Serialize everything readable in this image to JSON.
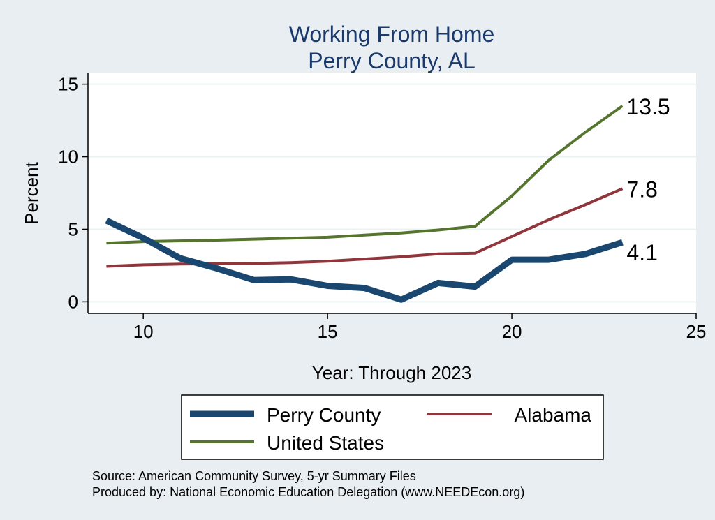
{
  "chart_data": {
    "type": "line",
    "title": "Working From Home",
    "subtitle": "Perry County, AL",
    "xlabel": "Year: Through 2023",
    "ylabel": "Percent",
    "xlim": [
      8.5,
      25
    ],
    "ylim": [
      -0.8,
      15.8
    ],
    "xticks": [
      10,
      15,
      20,
      25
    ],
    "yticks": [
      0,
      5,
      10,
      15
    ],
    "grid": true,
    "legend_position": "bottom",
    "series": [
      {
        "name": "Perry County",
        "color": "#1a476f",
        "x": [
          9,
          10,
          11,
          12,
          13,
          14,
          15,
          16,
          17,
          18,
          19,
          20,
          21,
          22,
          23
        ],
        "y": [
          5.6,
          4.4,
          3.0,
          2.3,
          1.5,
          1.55,
          1.1,
          0.95,
          0.15,
          1.3,
          1.05,
          2.9,
          2.9,
          3.3,
          4.1
        ],
        "end_label": "4.1"
      },
      {
        "name": "Alabama",
        "color": "#90353b",
        "x": [
          9,
          10,
          11,
          12,
          13,
          14,
          15,
          16,
          17,
          18,
          19,
          20,
          21,
          22,
          23
        ],
        "y": [
          2.45,
          2.55,
          2.6,
          2.62,
          2.65,
          2.7,
          2.8,
          2.95,
          3.1,
          3.3,
          3.35,
          4.5,
          5.65,
          6.7,
          7.8
        ],
        "end_label": "7.8"
      },
      {
        "name": "United States",
        "color": "#55752f",
        "x": [
          9,
          10,
          11,
          12,
          13,
          14,
          15,
          16,
          17,
          18,
          19,
          20,
          21,
          22,
          23
        ],
        "y": [
          4.05,
          4.15,
          4.2,
          4.25,
          4.32,
          4.38,
          4.45,
          4.6,
          4.75,
          4.95,
          5.2,
          7.3,
          9.75,
          11.7,
          13.5
        ],
        "end_label": "13.5"
      }
    ],
    "notes": [
      "Source: American Community Survey, 5-yr Summary Files",
      "Produced by: National Economic Education Delegation (www.NEEDEcon.org)"
    ]
  }
}
